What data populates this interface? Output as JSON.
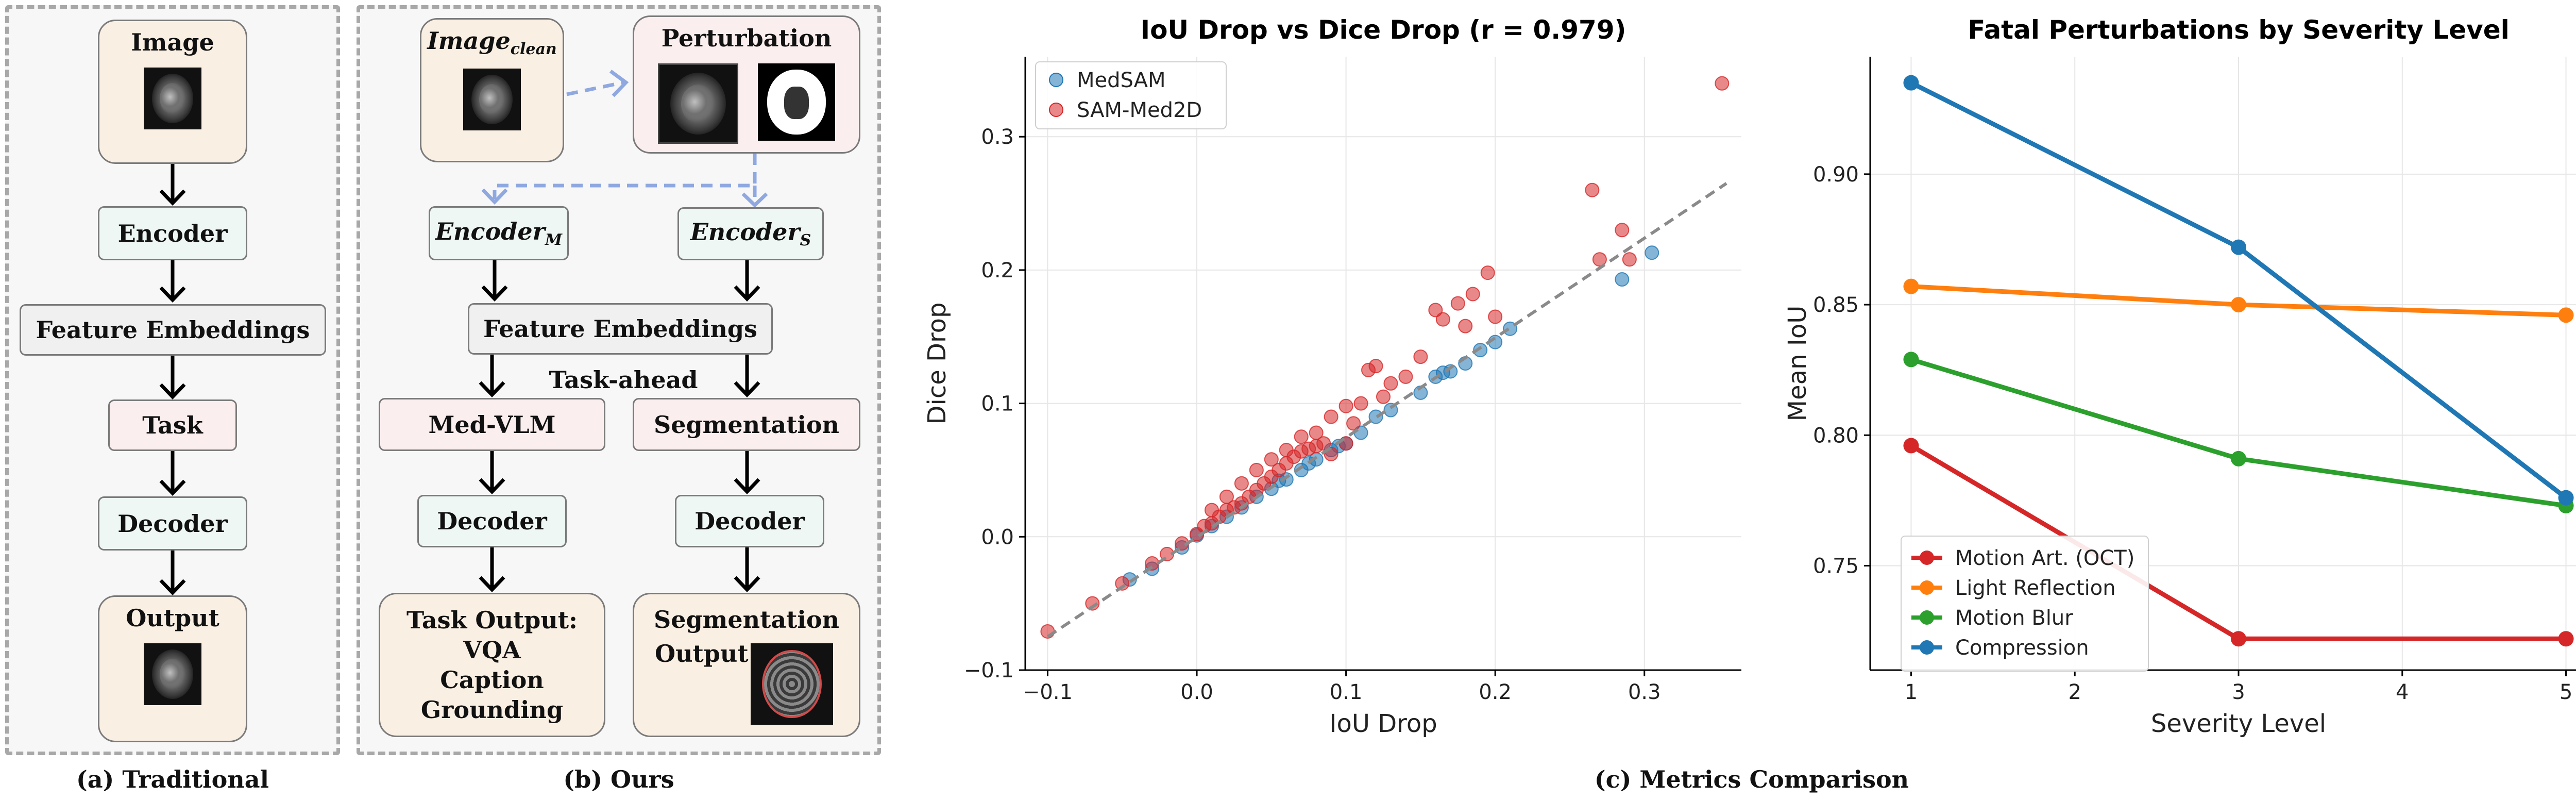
{
  "traditional": {
    "image": "Image",
    "encoder": "Encoder",
    "features": "Feature Embeddings",
    "task": "Task",
    "decoder": "Decoder",
    "output": "Output",
    "caption": "(a) Traditional"
  },
  "ours": {
    "image_main": "Image",
    "image_sub": "clean",
    "perturbation": "Perturbation",
    "encoder_m_main": "Encoder",
    "encoder_m_sub": "M",
    "encoder_s_main": "Encoder",
    "encoder_s_sub": "S",
    "features": "Feature Embeddings",
    "task_ahead": "Task-ahead",
    "med_vlm": "Med-VLM",
    "segmentation": "Segmentation",
    "decoder_left": "Decoder",
    "decoder_right": "Decoder",
    "task_output_title": "Task Output:",
    "task_output_items": [
      "VQA",
      "Caption",
      "Grounding"
    ],
    "seg_output_line1": "Segmentation",
    "seg_output_line2": "Output",
    "caption": "(b) Ours"
  },
  "metrics_caption": "(c) Metrics Comparison",
  "colors": {
    "medsam": "#1f77b4",
    "sammed2d": "#d62728",
    "arrow_dashed": "#8fa8e0",
    "compression": "#1f77b4",
    "light_reflection": "#ff7f0e",
    "motion_blur": "#2ca02c",
    "motion_art": "#d62728"
  },
  "chart_data": [
    {
      "type": "scatter",
      "title": "IoU Drop vs Dice Drop (r = 0.979)",
      "xlabel": "IoU Drop",
      "ylabel": "Dice Drop",
      "xlim": [
        -0.115,
        0.365
      ],
      "ylim": [
        -0.1,
        0.36
      ],
      "xticks": [
        -0.1,
        0.0,
        0.1,
        0.2,
        0.3
      ],
      "xtick_labels": [
        "−0.1",
        "0.0",
        "0.1",
        "0.2",
        "0.3"
      ],
      "yticks": [
        -0.1,
        0.0,
        0.1,
        0.2,
        0.3
      ],
      "ytick_labels": [
        "−0.1",
        "0.0",
        "0.1",
        "0.2",
        "0.3"
      ],
      "grid": true,
      "legend": "top-left",
      "fit_line": {
        "x": [
          -0.1,
          0.355
        ],
        "y": [
          -0.075,
          0.265
        ]
      },
      "series": [
        {
          "name": "MedSAM",
          "color": "#1f77b4",
          "points": [
            [
              -0.045,
              -0.032
            ],
            [
              -0.03,
              -0.024
            ],
            [
              -0.01,
              -0.008
            ],
            [
              0.0,
              0.001
            ],
            [
              0.01,
              0.008
            ],
            [
              0.02,
              0.015
            ],
            [
              0.03,
              0.022
            ],
            [
              0.04,
              0.03
            ],
            [
              0.05,
              0.036
            ],
            [
              0.06,
              0.043
            ],
            [
              0.07,
              0.05
            ],
            [
              0.08,
              0.058
            ],
            [
              0.09,
              0.065
            ],
            [
              0.1,
              0.07
            ],
            [
              0.11,
              0.078
            ],
            [
              0.12,
              0.09
            ],
            [
              0.13,
              0.095
            ],
            [
              0.15,
              0.108
            ],
            [
              0.16,
              0.12
            ],
            [
              0.165,
              0.123
            ],
            [
              0.17,
              0.124
            ],
            [
              0.18,
              0.13
            ],
            [
              0.19,
              0.14
            ],
            [
              0.2,
              0.146
            ],
            [
              0.21,
              0.156
            ],
            [
              0.285,
              0.193
            ],
            [
              0.305,
              0.213
            ],
            [
              0.055,
              0.042
            ],
            [
              0.075,
              0.055
            ],
            [
              0.095,
              0.068
            ]
          ]
        },
        {
          "name": "SAM-Med2D",
          "color": "#d62728",
          "points": [
            [
              -0.1,
              -0.071
            ],
            [
              -0.07,
              -0.05
            ],
            [
              -0.05,
              -0.035
            ],
            [
              -0.03,
              -0.02
            ],
            [
              -0.02,
              -0.013
            ],
            [
              -0.01,
              -0.005
            ],
            [
              0.0,
              0.002
            ],
            [
              0.005,
              0.008
            ],
            [
              0.01,
              0.01
            ],
            [
              0.015,
              0.015
            ],
            [
              0.02,
              0.02
            ],
            [
              0.025,
              0.022
            ],
            [
              0.03,
              0.025
            ],
            [
              0.035,
              0.03
            ],
            [
              0.04,
              0.035
            ],
            [
              0.045,
              0.04
            ],
            [
              0.05,
              0.045
            ],
            [
              0.055,
              0.05
            ],
            [
              0.06,
              0.055
            ],
            [
              0.065,
              0.06
            ],
            [
              0.07,
              0.064
            ],
            [
              0.075,
              0.066
            ],
            [
              0.08,
              0.068
            ],
            [
              0.085,
              0.07
            ],
            [
              0.09,
              0.062
            ],
            [
              0.1,
              0.07
            ],
            [
              0.105,
              0.085
            ],
            [
              0.11,
              0.1
            ],
            [
              0.115,
              0.125
            ],
            [
              0.12,
              0.128
            ],
            [
              0.125,
              0.105
            ],
            [
              0.13,
              0.115
            ],
            [
              0.14,
              0.12
            ],
            [
              0.15,
              0.135
            ],
            [
              0.16,
              0.17
            ],
            [
              0.165,
              0.163
            ],
            [
              0.175,
              0.175
            ],
            [
              0.18,
              0.158
            ],
            [
              0.185,
              0.182
            ],
            [
              0.195,
              0.198
            ],
            [
              0.2,
              0.165
            ],
            [
              0.265,
              0.26
            ],
            [
              0.27,
              0.208
            ],
            [
              0.285,
              0.23
            ],
            [
              0.29,
              0.208
            ],
            [
              0.352,
              0.34
            ],
            [
              0.02,
              0.03
            ],
            [
              0.04,
              0.05
            ],
            [
              0.06,
              0.065
            ],
            [
              0.07,
              0.075
            ],
            [
              0.08,
              0.078
            ],
            [
              0.03,
              0.04
            ],
            [
              0.05,
              0.058
            ],
            [
              0.01,
              0.02
            ],
            [
              0.09,
              0.09
            ],
            [
              0.1,
              0.098
            ]
          ]
        }
      ]
    },
    {
      "type": "line",
      "title": "Fatal Perturbations by Severity Level",
      "xlabel": "Severity Level",
      "ylabel": "Mean IoU",
      "x": [
        1,
        3,
        5
      ],
      "xlim": [
        0.75,
        5.25
      ],
      "ylim": [
        0.71,
        0.945
      ],
      "xticks": [
        1,
        2,
        3,
        4,
        5
      ],
      "xtick_labels": [
        "1",
        "2",
        "3",
        "4",
        "5"
      ],
      "yticks": [
        0.75,
        0.8,
        0.85,
        0.9
      ],
      "ytick_labels": [
        "0.75",
        "0.80",
        "0.85",
        "0.90"
      ],
      "grid": true,
      "legend": "bottom-left",
      "series": [
        {
          "name": "Motion Art. (OCT)",
          "color": "#d62728",
          "values": [
            0.796,
            0.722,
            0.722
          ]
        },
        {
          "name": "Light Reflection",
          "color": "#ff7f0e",
          "values": [
            0.857,
            0.85,
            0.846
          ]
        },
        {
          "name": "Motion Blur",
          "color": "#2ca02c",
          "values": [
            0.829,
            0.791,
            0.773
          ]
        },
        {
          "name": "Compression",
          "color": "#1f77b4",
          "values": [
            0.935,
            0.872,
            0.776
          ]
        }
      ]
    }
  ]
}
